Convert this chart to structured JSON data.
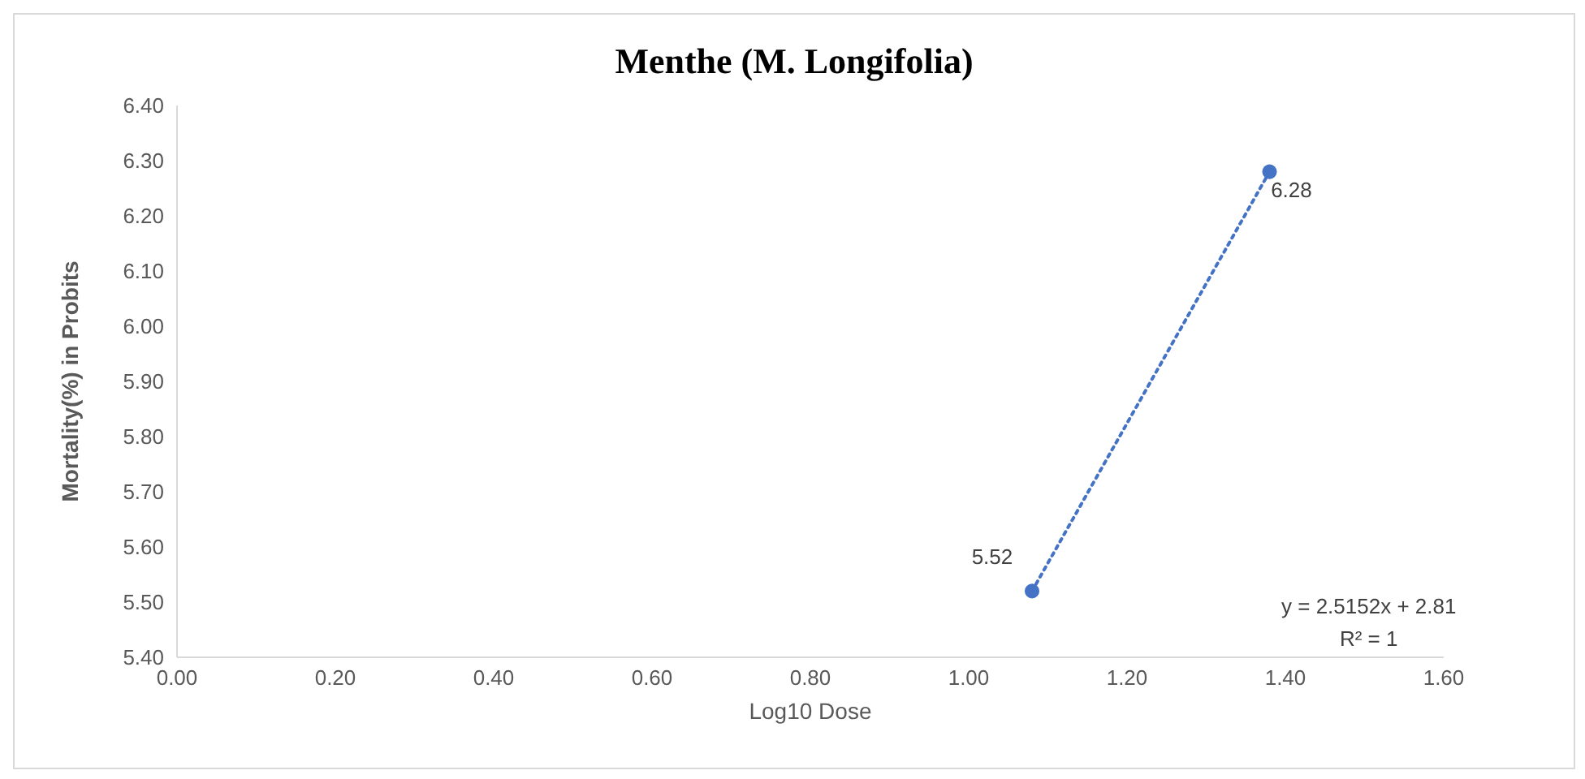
{
  "chart_data": {
    "type": "scatter",
    "title": "Menthe (M. Longifolia)",
    "xlabel": "Log10 Dose",
    "ylabel": "Mortality(%) in Probits",
    "xlim": [
      0,
      1.6
    ],
    "xticks": [
      {
        "value": 0,
        "label": "0.00"
      },
      {
        "value": 0.2,
        "label": "0.20"
      },
      {
        "value": 0.4,
        "label": "0.40"
      },
      {
        "value": 0.6,
        "label": "0.60"
      },
      {
        "value": 0.8,
        "label": "0.80"
      },
      {
        "value": 1.0,
        "label": "1.00"
      },
      {
        "value": 1.2,
        "label": "1.20"
      },
      {
        "value": 1.4,
        "label": "1.40"
      },
      {
        "value": 1.6,
        "label": "1.60"
      }
    ],
    "ylim": [
      5.4,
      6.4
    ],
    "yticks": [
      {
        "value": 5.4,
        "label": "5.40"
      },
      {
        "value": 5.5,
        "label": "5.50"
      },
      {
        "value": 5.6,
        "label": "5.60"
      },
      {
        "value": 5.7,
        "label": "5.70"
      },
      {
        "value": 5.8,
        "label": "5.80"
      },
      {
        "value": 5.9,
        "label": "5.90"
      },
      {
        "value": 6.0,
        "label": "6.00"
      },
      {
        "value": 6.1,
        "label": "6.10"
      },
      {
        "value": 6.2,
        "label": "6.20"
      },
      {
        "value": 6.3,
        "label": "6.30"
      },
      {
        "value": 6.4,
        "label": "6.40"
      }
    ],
    "x": [
      1.08,
      1.38
    ],
    "series": [
      {
        "color": "#4472c4",
        "marker": "circle",
        "values": [
          5.52,
          6.28
        ],
        "value_labels": [
          "5.52",
          "6.28"
        ]
      },
      {
        "type": "line",
        "color": "#4472c4",
        "marker": "none",
        "line_style": "dotted",
        "values": [
          5.52,
          6.28
        ]
      }
    ],
    "annotations": [
      "y = 2.5152x + 2.81",
      "R² = 1"
    ]
  }
}
